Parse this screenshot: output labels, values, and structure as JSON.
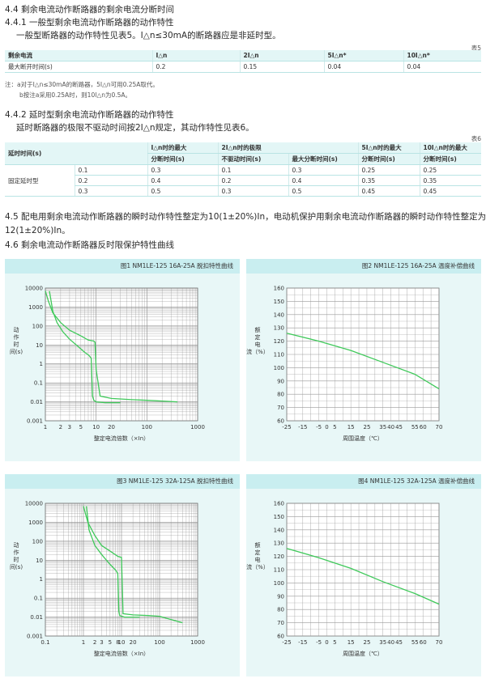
{
  "sections": {
    "s44": "4.4 剩余电流动作断路器的剩余电流分断时间",
    "s441": "4.4.1 一般型剩余电流动作断路器的动作特性",
    "s441_text": "一般型断路器的动作特性见表5。I△n≤30mA的断路器应是非延时型。",
    "s442": "4.4.2 延时型剩余电流动作断路器的动作特性",
    "s442_text": "延时断路器的极限不驱动时间按2I△n规定，其动作特性见表6。",
    "s45_line1": "4.5 配电用剩余电流动作断路器的瞬时动作特性整定为10(1±20%)In，电动机保护用剩余电流动作断路器的瞬时动作特性整定为",
    "s45_line2": "12(1±20%)In。",
    "s46": "4.6 剩余电流动作断路器反时限保护特性曲线"
  },
  "table5": {
    "label": "表5",
    "header": [
      "剩余电流",
      "I△n",
      "2I△n",
      "5I△n*",
      "10I△n*"
    ],
    "row": [
      "最大断开时间(s)",
      "0.2",
      "0.15",
      "0.04",
      "0.04"
    ],
    "notes": [
      "注：a对于I△n≤30mA的断路器，5I△n可用0.25A取代。",
      "b按注a采用0.25A时，则10I△n为0.5A。"
    ]
  },
  "table6": {
    "label": "表6",
    "h1": [
      "延时时间(s)",
      "I△n时的最大",
      "2I△n时的极限",
      "5I△n时的最大",
      "10I△n时的最大"
    ],
    "h2": [
      "分断时间(s)",
      "不驱动时间(s)",
      "最大分断时间(s)",
      "分断时间(s)",
      "分断时间(s)"
    ],
    "group": "固定延时型",
    "rows": [
      [
        "0.1",
        "0.3",
        "0.1",
        "0.3",
        "0.25",
        "0.25"
      ],
      [
        "0.2",
        "0.4",
        "0.2",
        "0.4",
        "0.35",
        "0.35"
      ],
      [
        "0.3",
        "0.5",
        "0.3",
        "0.5",
        "0.45",
        "0.45"
      ]
    ]
  },
  "chart_data": [
    {
      "type": "line",
      "title": "图1 NM1LE-125 16A-25A 脱扣特性曲线",
      "xlabel": "整定电流倍数（×In）",
      "ylabel": "动作时间(s)",
      "xscale": "log",
      "yscale": "log",
      "xlim": [
        1,
        1000
      ],
      "ylim": [
        0.001,
        10000
      ],
      "xticks": [
        "1",
        "2",
        "3",
        "5",
        "10",
        "20",
        "100",
        "1000"
      ],
      "yticks": [
        "10000",
        "1000",
        "100",
        "10",
        "1",
        "0.1",
        "0.01",
        "0.001"
      ],
      "grid": true,
      "series": [
        {
          "x": [
            1.0,
            1.15,
            1.4,
            2,
            3,
            5,
            7,
            8,
            9,
            9.5,
            10,
            12,
            20,
            50,
            100,
            400
          ],
          "y": [
            7000,
            2000,
            500,
            150,
            60,
            30,
            18,
            17,
            16,
            14,
            0.5,
            0.02,
            0.015,
            0.013,
            0.012,
            0.01
          ]
        },
        {
          "x": [
            1.2,
            1.4,
            1.7,
            2.2,
            3,
            4.5,
            6,
            7,
            7.5,
            8,
            8.5,
            9,
            10,
            15,
            30
          ],
          "y": [
            7000,
            600,
            150,
            50,
            20,
            8,
            4,
            3,
            2.5,
            2,
            0.02,
            0.012,
            0.01,
            0.009,
            0.009
          ]
        }
      ]
    },
    {
      "type": "line",
      "title": "图2 NM1LE-125 16A-25A 温度补偿曲线",
      "xlabel": "周围温度（℃）",
      "ylabel": "额定电流（%）",
      "xlim": [
        -25,
        70
      ],
      "ylim": [
        60,
        160
      ],
      "xticks": [
        "-25",
        "-15",
        "-5",
        "0",
        "5",
        "15",
        "25",
        "35",
        "40",
        "45",
        "55",
        "60",
        "70"
      ],
      "yticks": [
        "160",
        "150",
        "140",
        "130",
        "120",
        "110",
        "100",
        "90",
        "80",
        "70",
        "60"
      ],
      "grid": true,
      "series": [
        {
          "x": [
            -25,
            -5,
            15,
            35,
            55,
            70
          ],
          "y": [
            126,
            120,
            113,
            104,
            95,
            84
          ]
        }
      ]
    },
    {
      "type": "line",
      "title": "图3 NM1LE-125 32A-125A 脱扣特性曲线",
      "xlabel": "整定电流倍数（×In）",
      "ylabel": "动作时间(s)",
      "xscale": "log",
      "yscale": "log",
      "xlim": [
        0.1,
        1000
      ],
      "ylim": [
        0.001,
        10000
      ],
      "xticks": [
        "0.1",
        "1",
        "2",
        "3",
        "5",
        "8",
        "10",
        "20",
        "100",
        "1000"
      ],
      "yticks": [
        "10000",
        "1000",
        "100",
        "10",
        "1",
        "0.1",
        "0.01",
        "0.001"
      ],
      "grid": true,
      "series": [
        {
          "x": [
            1.0,
            1.3,
            2,
            3,
            5,
            8,
            9,
            10,
            11,
            20,
            50,
            100,
            400
          ],
          "y": [
            7000,
            1000,
            200,
            60,
            30,
            16,
            15,
            14,
            0.015,
            0.013,
            0.012,
            0.011,
            0.005
          ]
        },
        {
          "x": [
            1.2,
            1.4,
            2,
            3,
            5,
            7,
            8,
            8.5,
            9,
            12,
            30
          ],
          "y": [
            7000,
            400,
            60,
            20,
            6,
            3,
            2,
            0.02,
            0.012,
            0.01,
            0.01
          ]
        }
      ]
    },
    {
      "type": "line",
      "title": "图4 NM1LE-125 32A-125A 温度补偿曲线",
      "xlabel": "周围温度（℃）",
      "ylabel": "额定电流（%）",
      "xlim": [
        -25,
        70
      ],
      "ylim": [
        60,
        160
      ],
      "xticks": [
        "-25",
        "-15",
        "-5",
        "0",
        "5",
        "15",
        "25",
        "35",
        "40",
        "45",
        "55",
        "60",
        "70"
      ],
      "yticks": [
        "160",
        "150",
        "140",
        "130",
        "120",
        "110",
        "100",
        "90",
        "80",
        "70",
        "60"
      ],
      "grid": true,
      "series": [
        {
          "x": [
            -25,
            -5,
            15,
            35,
            55,
            70
          ],
          "y": [
            126,
            119,
            111,
            101,
            92,
            84
          ]
        }
      ]
    }
  ]
}
